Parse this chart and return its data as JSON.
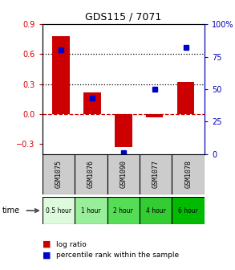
{
  "title": "GDS115 / 7071",
  "categories": [
    "GSM1075",
    "GSM1076",
    "GSM1090",
    "GSM1077",
    "GSM1078"
  ],
  "time_labels": [
    "0.5 hour",
    "1 hour",
    "2 hour",
    "4 hour",
    "6 hour"
  ],
  "time_colors": [
    "#ddfadd",
    "#99ee99",
    "#55dd55",
    "#33cc33",
    "#00bb00"
  ],
  "log_ratios": [
    0.78,
    0.22,
    -0.33,
    -0.03,
    0.32
  ],
  "percentile_ranks": [
    80,
    43,
    1,
    50,
    82
  ],
  "bar_color": "#cc0000",
  "dot_color": "#0000cc",
  "ylim_left": [
    -0.4,
    0.9
  ],
  "ylim_right": [
    0,
    100
  ],
  "yticks_left": [
    -0.3,
    0,
    0.3,
    0.6,
    0.9
  ],
  "yticks_right": [
    0,
    25,
    50,
    75,
    100
  ],
  "hline_y": [
    0.3,
    0.6
  ],
  "background_color": "#ffffff",
  "zero_line_color": "#cc0000",
  "label_bg": "#cccccc",
  "right_axis_color": "#0000bb",
  "left_axis_color": "#cc0000"
}
